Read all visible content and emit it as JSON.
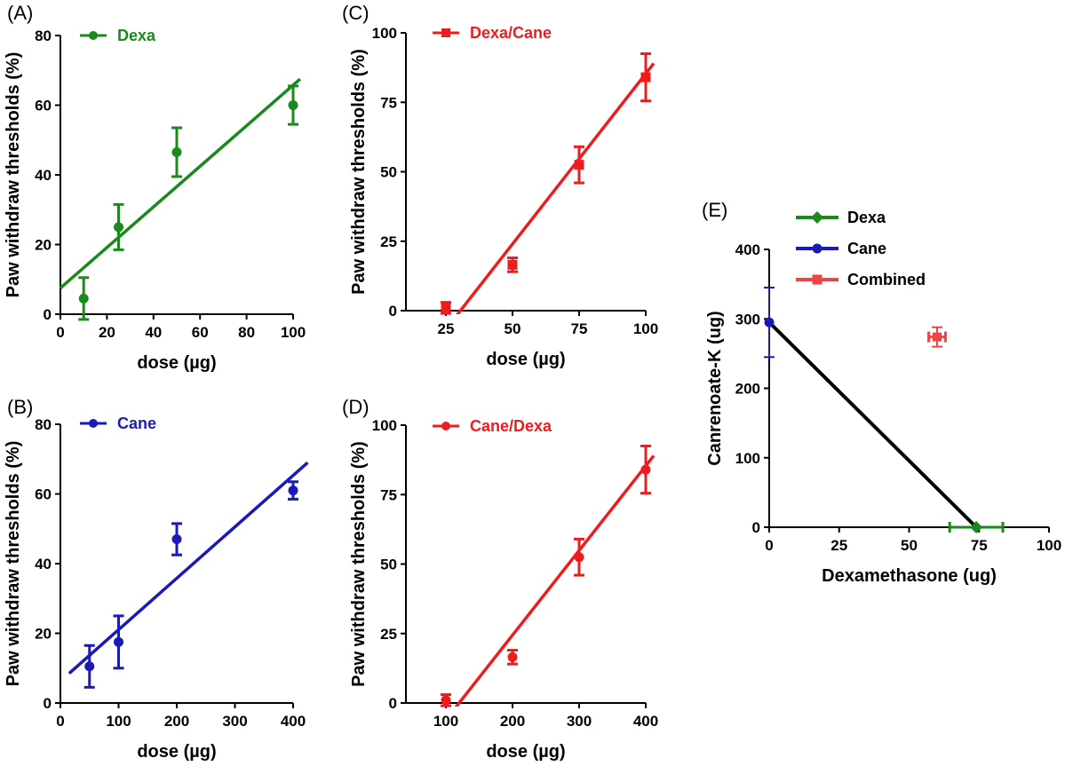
{
  "chart_data": [
    {
      "panel": "(A)",
      "type": "scatter",
      "xlabel": "dose (µg)",
      "ylabel": "Paw withdraw thresholds (%)",
      "xlim": [
        0,
        100
      ],
      "ylim": [
        0,
        80
      ],
      "xticks": [
        0,
        20,
        40,
        60,
        80,
        100
      ],
      "yticks": [
        0,
        20,
        40,
        60,
        80
      ],
      "marker": "circle",
      "color": "#1a8a1a",
      "legend": "top-left",
      "series": [
        {
          "name": "Dexa",
          "points": [
            {
              "x": 10,
              "y": 4.5,
              "err": 6
            },
            {
              "x": 25,
              "y": 25,
              "err": 6.5
            },
            {
              "x": 50,
              "y": 46.5,
              "err": 7
            },
            {
              "x": 100,
              "y": 60,
              "err": 5.5
            }
          ],
          "fit": {
            "x": [
              0,
              103
            ],
            "y": [
              7.5,
              67.5
            ]
          }
        }
      ]
    },
    {
      "panel": "(B)",
      "type": "scatter",
      "xlabel": "dose (µg)",
      "ylabel": "Paw withdraw thresholds (%)",
      "xlim": [
        0,
        400
      ],
      "ylim": [
        0,
        80
      ],
      "xticks": [
        0,
        100,
        200,
        300,
        400
      ],
      "yticks": [
        0,
        20,
        40,
        60,
        80
      ],
      "marker": "circle",
      "color": "#1a1ab8",
      "legend": "top-left",
      "series": [
        {
          "name": "Cane",
          "points": [
            {
              "x": 50,
              "y": 10.5,
              "err": 6
            },
            {
              "x": 100,
              "y": 17.5,
              "err": 7.5
            },
            {
              "x": 200,
              "y": 47,
              "err": 4.5
            },
            {
              "x": 400,
              "y": 61,
              "err": 2.5
            }
          ],
          "fit": {
            "x": [
              15,
              425
            ],
            "y": [
              8.5,
              69
            ]
          }
        }
      ]
    },
    {
      "panel": "(C)",
      "type": "scatter",
      "xlabel": "dose (µg)",
      "ylabel": "Paw withdraw thresholds (%)",
      "xlim": [
        10,
        100
      ],
      "ylim": [
        0,
        100
      ],
      "xticks": [
        25,
        50,
        75,
        100
      ],
      "yticks": [
        0,
        25,
        50,
        75,
        100
      ],
      "marker": "square",
      "color": "#ee1c1c",
      "legend": "top-left",
      "series": [
        {
          "name": "Dexa/Cane",
          "points": [
            {
              "x": 25,
              "y": 1,
              "err": 2
            },
            {
              "x": 50,
              "y": 16.5,
              "err": 2.5
            },
            {
              "x": 75,
              "y": 52.5,
              "err": 6.5
            },
            {
              "x": 100,
              "y": 84,
              "err": 8.5
            }
          ],
          "fit": {
            "x": [
              28,
              103
            ],
            "y": [
              -3,
              89
            ]
          }
        }
      ]
    },
    {
      "panel": "(D)",
      "type": "scatter",
      "xlabel": "dose (µg)",
      "ylabel": "Paw withdraw thresholds (%)",
      "xlim": [
        40,
        400
      ],
      "ylim": [
        0,
        100
      ],
      "xticks": [
        100,
        200,
        300,
        400
      ],
      "yticks": [
        0,
        25,
        50,
        75,
        100
      ],
      "marker": "circle",
      "color": "#ee1c1c",
      "legend": "top-left",
      "series": [
        {
          "name": "Cane/Dexa",
          "points": [
            {
              "x": 100,
              "y": 1,
              "err": 2
            },
            {
              "x": 200,
              "y": 16.5,
              "err": 2.5
            },
            {
              "x": 300,
              "y": 52.5,
              "err": 6.5
            },
            {
              "x": 400,
              "y": 84,
              "err": 8.5
            }
          ],
          "fit": {
            "x": [
              110,
              412
            ],
            "y": [
              -3,
              89
            ]
          }
        }
      ]
    },
    {
      "panel": "(E)",
      "type": "scatter",
      "xlabel": "Dexamethasone (ug)",
      "ylabel": "Canrenoate-K (ug)",
      "xlim": [
        0,
        100
      ],
      "ylim": [
        0,
        400
      ],
      "xticks": [
        0,
        25,
        50,
        75,
        100
      ],
      "yticks": [
        0,
        100,
        200,
        300,
        400
      ],
      "legend": "top-left",
      "isobole": {
        "x": [
          0,
          74
        ],
        "y": [
          295,
          0
        ],
        "color": "#000000"
      },
      "series": [
        {
          "name": "Dexa",
          "marker": "diamond",
          "color": "#1a8a1a",
          "points": [
            {
              "x": 74,
              "y": 0,
              "xerr": 9.5
            }
          ]
        },
        {
          "name": "Cane",
          "marker": "circle",
          "color": "#1a1ab8",
          "points": [
            {
              "x": 0,
              "y": 295,
              "yerr": 50
            }
          ]
        },
        {
          "name": "Combined",
          "marker": "square",
          "color": "#ee4444",
          "points": [
            {
              "x": 60,
              "y": 274,
              "xerr": 3,
              "yerr": 14
            }
          ]
        }
      ]
    }
  ]
}
